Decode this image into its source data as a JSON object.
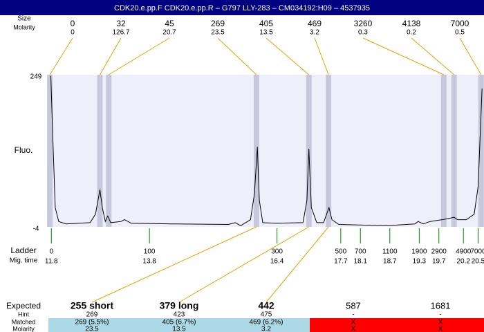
{
  "header": {
    "title": "CDK20.e.pp.F  CDK20.e.pp.R – G797 LLY-283 – CM034192:H09 – 4537935"
  },
  "peaks": {
    "size_label": "Size",
    "molarity_label": "Molarity",
    "items": [
      {
        "size": 0,
        "molarity": 0,
        "x": 11.77
      },
      {
        "size": 32,
        "molarity": 126.7,
        "x": 12.79
      },
      {
        "size": 45,
        "molarity": 20.7,
        "x": 12.97
      },
      {
        "size": 269,
        "molarity": 23.5,
        "x": 15.98
      },
      {
        "size": 405,
        "molarity": 13.5,
        "x": 17.05
      },
      {
        "size": 469,
        "molarity": 3.2,
        "x": 17.45
      },
      {
        "size": 3260,
        "molarity": 0.3,
        "x": 19.8
      },
      {
        "size": 4138,
        "molarity": 0.2,
        "x": 20.01
      },
      {
        "size": 7000,
        "molarity": 0.5,
        "x": 20.56
      }
    ]
  },
  "chart_data": {
    "type": "line",
    "ylabel": "Fluo.",
    "x": [
      11.79,
      11.83,
      11.88,
      11.95,
      12.1,
      12.59,
      12.7,
      12.79,
      12.84,
      12.9,
      12.95,
      13.01,
      13.22,
      13.29,
      13.43,
      14.28,
      15.41,
      15.55,
      15.66,
      15.86,
      15.94,
      16.0,
      16.04,
      16.11,
      16.39,
      16.93,
      17.01,
      17.05,
      17.1,
      17.21,
      17.35,
      17.41,
      17.46,
      17.52,
      17.66,
      18.65,
      19.21,
      19.28,
      19.38,
      19.52,
      19.77,
      19.91,
      20.01,
      20.08,
      20.26,
      20.42,
      20.5,
      20.54,
      20.58
    ],
    "series": [
      {
        "color": "#000000",
        "values": [
          247,
          143,
          28,
          5,
          1,
          3,
          17,
          58,
          28,
          5,
          14,
          3,
          5,
          8,
          2,
          1,
          0,
          3,
          -2,
          8,
          51,
          129,
          40,
          3,
          2,
          3,
          40,
          126,
          28,
          3,
          3,
          17,
          28,
          8,
          0,
          -2,
          1,
          5,
          1,
          5,
          8,
          10,
          12,
          8,
          8,
          17,
          63,
          143,
          226
        ]
      }
    ],
    "xlim": [
      11.74,
      20.62
    ],
    "ylim": [
      -4,
      249
    ],
    "yticks": [
      249,
      -4
    ]
  },
  "ladder": {
    "label": "Ladder",
    "time_label": "Mig. time",
    "items": [
      {
        "size": 0,
        "time": 11.8
      },
      {
        "size": 100,
        "time": 13.8
      },
      {
        "size": 300,
        "time": 16.4
      },
      {
        "size": 500,
        "time": 17.7
      },
      {
        "size": 700,
        "time": 18.1
      },
      {
        "size": 1100,
        "time": 18.7
      },
      {
        "size": 1900,
        "time": 19.3
      },
      {
        "size": 2900,
        "time": 19.7
      },
      {
        "size": 4900,
        "time": 20.2
      },
      {
        "size": 7000,
        "time": 20.5
      }
    ]
  },
  "expected": {
    "labels": {
      "expected": "Expected",
      "hint": "Hint",
      "matched": "Matched",
      "molarity": "Molarity"
    },
    "columns": [
      {
        "expected": "255 short",
        "hint": 269,
        "matched": "269 (5.5%)",
        "molarity": 23.5
      },
      {
        "expected": "379 long",
        "hint": 423,
        "matched": "405 (6.7%)",
        "molarity": 13.5
      },
      {
        "expected": "442",
        "hint": 475,
        "matched": "469 (6.2%)",
        "molarity": 3.2
      },
      {
        "expected": "587",
        "hint": "-",
        "matched": "X",
        "molarity": "X"
      },
      {
        "expected": "1681",
        "hint": "-",
        "matched": "X",
        "molarity": "X"
      }
    ]
  }
}
